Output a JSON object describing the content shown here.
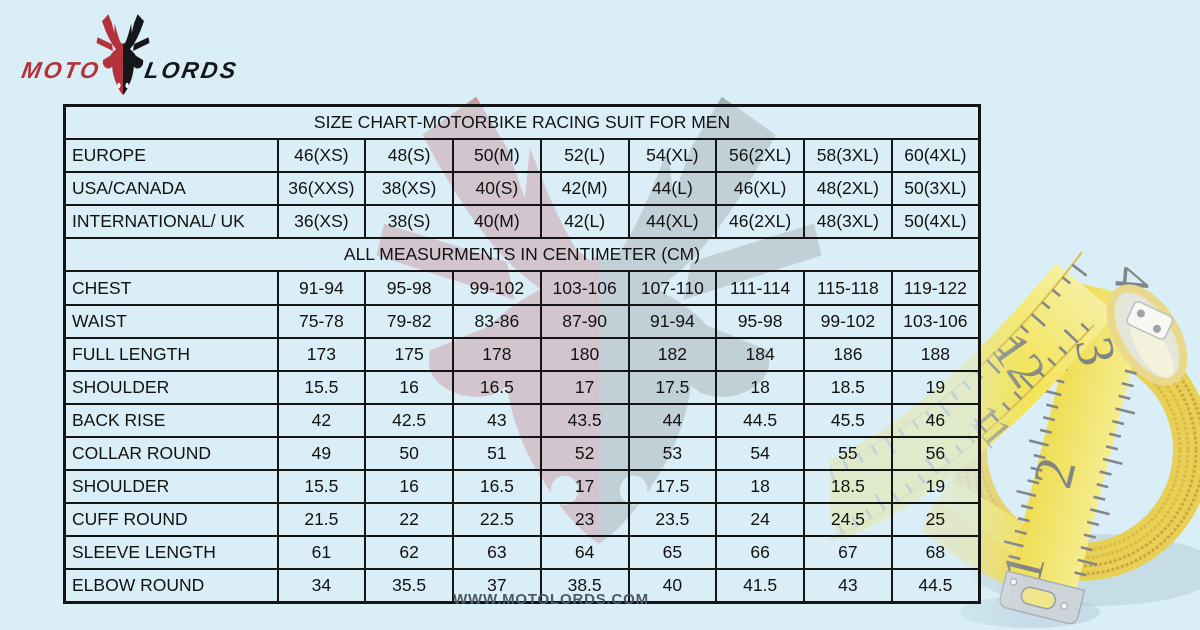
{
  "logo": {
    "moto": "MOTO",
    "lords": "LORDS"
  },
  "footer": {
    "website": "WWW.MOTOLORDS.COM"
  },
  "colors": {
    "background": "#d9eef7",
    "accent_red": "#b4323c",
    "logo_black": "#16171b",
    "table_border": "#141414",
    "table_text": "#121212",
    "footer_text": "#4a5a63",
    "tape_yellow": "#f2e158",
    "watermark_rose": "#ca9aa0",
    "watermark_gray": "#a6afb3"
  },
  "icons": {
    "brand_emblem": "motolords-bull-trident",
    "watermark": "brand-watermark",
    "tape": "tape-measure"
  },
  "chart_data": {
    "type": "table",
    "title": "SIZE CHART-MOTORBIKE RACING SUIT FOR MEN",
    "note": "ALL MEASURMENTS IN CENTIMETER (CM)",
    "size_rows": [
      {
        "label": "EUROPE",
        "values": [
          "46(XS)",
          "48(S)",
          "50(M)",
          "52(L)",
          "54(XL)",
          "56(2XL)",
          "58(3XL)",
          "60(4XL)"
        ]
      },
      {
        "label": "USA/CANADA",
        "values": [
          "36(XXS)",
          "38(XS)",
          "40(S)",
          "42(M)",
          "44(L)",
          "46(XL)",
          "48(2XL)",
          "50(3XL)"
        ]
      },
      {
        "label": "INTERNATIONAL/ UK",
        "values": [
          "36(XS)",
          "38(S)",
          "40(M)",
          "42(L)",
          "44(XL)",
          "46(2XL)",
          "48(3XL)",
          "50(4XL)"
        ]
      }
    ],
    "measurement_rows": [
      {
        "label": "CHEST",
        "values": [
          "91-94",
          "95-98",
          "99-102",
          "103-106",
          "107-110",
          "111-114",
          "115-118",
          "119-122"
        ]
      },
      {
        "label": "WAIST",
        "values": [
          "75-78",
          "79-82",
          "83-86",
          "87-90",
          "91-94",
          "95-98",
          "99-102",
          "103-106"
        ]
      },
      {
        "label": "FULL LENGTH",
        "values": [
          "173",
          "175",
          "178",
          "180",
          "182",
          "184",
          "186",
          "188"
        ]
      },
      {
        "label": "SHOULDER",
        "values": [
          "15.5",
          "16",
          "16.5",
          "17",
          "17.5",
          "18",
          "18.5",
          "19"
        ]
      },
      {
        "label": "BACK RISE",
        "values": [
          "42",
          "42.5",
          "43",
          "43.5",
          "44",
          "44.5",
          "45.5",
          "46"
        ]
      },
      {
        "label": "COLLAR ROUND",
        "values": [
          "49",
          "50",
          "51",
          "52",
          "53",
          "54",
          "55",
          "56"
        ]
      },
      {
        "label": "SHOULDER",
        "values": [
          "15.5",
          "16",
          "16.5",
          "17",
          "17.5",
          "18",
          "18.5",
          "19"
        ]
      },
      {
        "label": "CUFF ROUND",
        "values": [
          "21.5",
          "22",
          "22.5",
          "23",
          "23.5",
          "24",
          "24.5",
          "25"
        ]
      },
      {
        "label": "SLEEVE LENGTH",
        "values": [
          "61",
          "62",
          "63",
          "64",
          "65",
          "66",
          "67",
          "68"
        ]
      },
      {
        "label": "ELBOW ROUND",
        "values": [
          "34",
          "35.5",
          "37",
          "38.5",
          "40",
          "41.5",
          "43",
          "44.5"
        ]
      }
    ],
    "tape_numbers_visible": [
      "1",
      "2",
      "3",
      "4",
      "11",
      "12"
    ]
  }
}
